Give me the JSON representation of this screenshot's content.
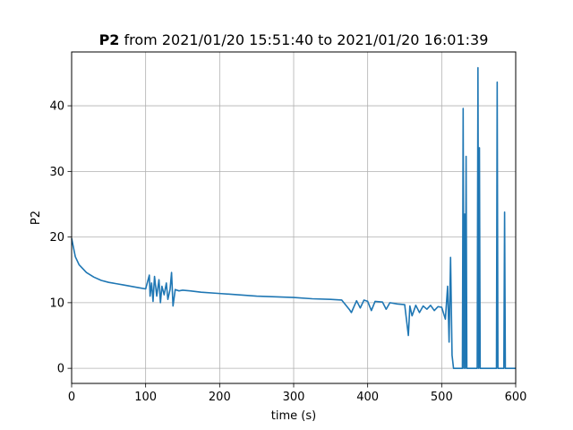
{
  "chart_data": {
    "type": "line",
    "title_bold": "P2",
    "title_rest": " from 2021/01/20 15:51:40 to 2021/01/20 16:01:39",
    "xlabel": "time (s)",
    "ylabel": "P2",
    "xlim": [
      0,
      600
    ],
    "ylim": [
      -2.3,
      48.2
    ],
    "xticks": [
      0,
      100,
      200,
      300,
      400,
      500,
      600
    ],
    "yticks": [
      0,
      10,
      20,
      30,
      40
    ],
    "grid": true,
    "series": [
      {
        "color": "#1f77b4",
        "x": [
          0,
          5,
          10,
          20,
          30,
          40,
          50,
          60,
          70,
          80,
          90,
          100,
          105,
          106,
          108,
          110,
          112,
          115,
          118,
          120,
          122,
          125,
          128,
          130,
          133,
          135,
          137,
          140,
          145,
          150,
          160,
          175,
          200,
          225,
          250,
          275,
          300,
          325,
          350,
          365,
          375,
          378,
          385,
          390,
          395,
          400,
          405,
          410,
          420,
          425,
          430,
          440,
          450,
          455,
          457,
          460,
          465,
          470,
          475,
          480,
          485,
          490,
          495,
          500,
          505,
          508,
          510,
          512,
          514,
          516,
          518,
          520,
          522,
          524,
          526,
          528,
          529,
          530,
          531,
          532,
          533,
          534,
          535,
          536,
          537,
          538,
          540,
          542,
          544,
          546,
          548,
          549,
          550,
          551,
          552,
          553,
          554,
          556,
          560,
          565,
          570,
          574,
          575,
          576,
          580,
          584,
          585,
          586,
          590,
          595,
          600
        ],
        "y": [
          19.8,
          17.0,
          15.8,
          14.6,
          13.9,
          13.4,
          13.1,
          12.9,
          12.7,
          12.5,
          12.3,
          12.1,
          14.2,
          11.0,
          13.0,
          10.2,
          14.0,
          11.0,
          13.5,
          10.0,
          12.5,
          11.2,
          13.0,
          10.5,
          12.0,
          14.6,
          9.5,
          12.0,
          11.8,
          11.9,
          11.8,
          11.6,
          11.4,
          11.2,
          11.0,
          10.9,
          10.8,
          10.6,
          10.5,
          10.4,
          9.0,
          8.5,
          10.3,
          9.2,
          10.4,
          10.2,
          8.8,
          10.2,
          10.1,
          9.0,
          10.0,
          9.8,
          9.7,
          5.0,
          9.5,
          8.0,
          9.6,
          8.5,
          9.5,
          9.0,
          9.6,
          8.8,
          9.4,
          9.3,
          7.5,
          12.5,
          4.0,
          16.9,
          2.0,
          0.0,
          0.0,
          0.0,
          0.0,
          0.0,
          0.0,
          0.0,
          39.6,
          0.0,
          23.5,
          0.0,
          32.3,
          0.0,
          0.0,
          0.0,
          0.0,
          0.0,
          0.0,
          0.0,
          0.0,
          0.0,
          0.0,
          45.8,
          0.0,
          33.6,
          0.0,
          0.0,
          0.0,
          0.0,
          0.0,
          0.0,
          0.0,
          0.0,
          43.6,
          0.0,
          0.0,
          0.0,
          23.8,
          0.0,
          0.0,
          0.0,
          0.0
        ]
      }
    ]
  }
}
